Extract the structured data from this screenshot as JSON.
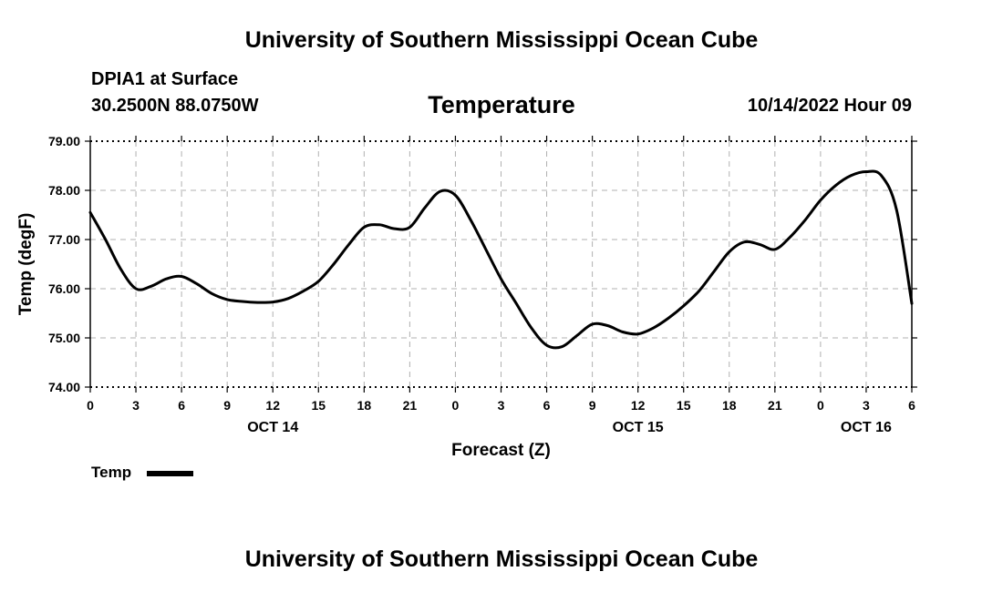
{
  "header": {
    "title": "University of Southern Mississippi Ocean Cube",
    "station": "DPIA1 at Surface",
    "coords": "30.2500N  88.0750W",
    "datetime": "10/14/2022 Hour 09",
    "footer_title": "University of Southern Mississippi Ocean Cube"
  },
  "chart_data": {
    "type": "line",
    "title": "Temperature",
    "xlabel": "Forecast (Z)",
    "ylabel": "Temp (degF)",
    "ylim": [
      74.0,
      79.0
    ],
    "xlim": [
      0,
      54
    ],
    "yticks": [
      "74.00",
      "75.00",
      "76.00",
      "77.00",
      "78.00",
      "79.00"
    ],
    "xtick_labels": [
      "0",
      "3",
      "6",
      "9",
      "12",
      "15",
      "18",
      "21",
      "0",
      "3",
      "6",
      "9",
      "12",
      "15",
      "18",
      "21",
      "0",
      "3",
      "6"
    ],
    "date_labels": [
      {
        "label": "OCT 14",
        "hour": 12
      },
      {
        "label": "OCT 15",
        "hour": 36
      },
      {
        "label": "OCT 16",
        "hour": 51
      }
    ],
    "grid": true,
    "legend": "bottom-left",
    "series": [
      {
        "name": "Temp",
        "color": "#000000",
        "x": [
          0,
          1,
          2,
          3,
          4,
          5,
          6,
          7,
          8,
          9,
          10,
          11,
          12,
          13,
          14,
          15,
          16,
          17,
          18,
          19,
          20,
          21,
          22,
          23,
          24,
          25,
          26,
          27,
          28,
          29,
          30,
          31,
          32,
          33,
          34,
          35,
          36,
          37,
          38,
          39,
          40,
          41,
          42,
          43,
          44,
          45,
          46,
          47,
          48,
          49,
          50,
          51,
          52,
          53,
          54
        ],
        "y": [
          77.55,
          77.0,
          76.4,
          76.0,
          76.05,
          76.2,
          76.25,
          76.1,
          75.9,
          75.78,
          75.74,
          75.72,
          75.73,
          75.8,
          75.95,
          76.15,
          76.5,
          76.9,
          77.25,
          77.3,
          77.22,
          77.25,
          77.65,
          77.98,
          77.9,
          77.4,
          76.8,
          76.2,
          75.7,
          75.2,
          74.85,
          74.82,
          75.05,
          75.28,
          75.25,
          75.12,
          75.08,
          75.2,
          75.4,
          75.65,
          75.95,
          76.35,
          76.75,
          76.95,
          76.9,
          76.8,
          77.05,
          77.4,
          77.8,
          78.1,
          78.3,
          78.38,
          78.3,
          77.6,
          75.7
        ]
      }
    ]
  }
}
